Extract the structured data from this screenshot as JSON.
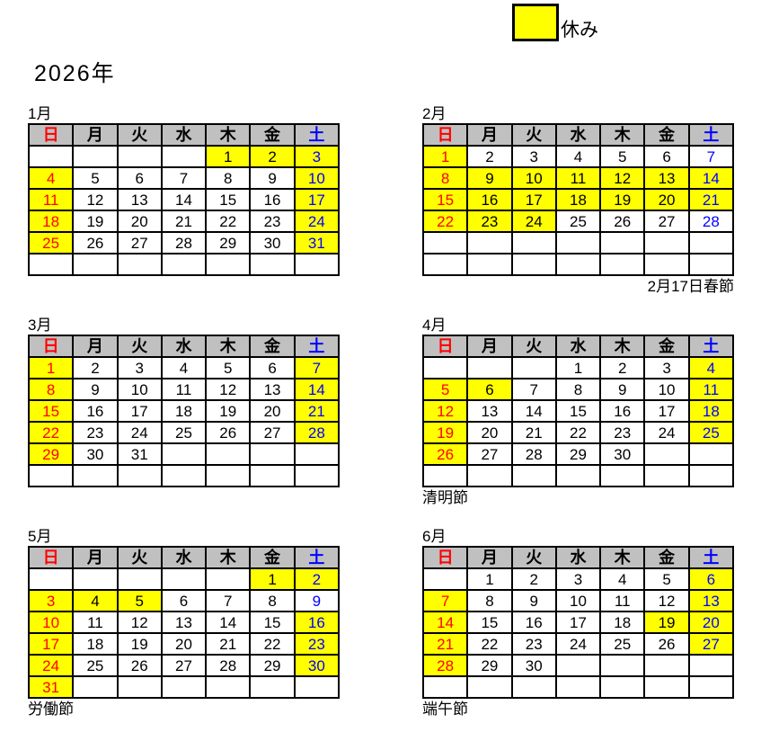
{
  "title": "2026年",
  "legend": {
    "label": "休み"
  },
  "colors": {
    "holiday_bg": "#ffff00",
    "header_bg": "#c0c0c0",
    "sunday_text": "#ff0000",
    "saturday_text": "#0000ff",
    "weekday_text": "#000000",
    "grid": "#000000",
    "page_bg": "#ffffff"
  },
  "weekday_headers": [
    {
      "label": "日",
      "color": "#ff0000"
    },
    {
      "label": "月",
      "color": "#000000"
    },
    {
      "label": "火",
      "color": "#000000"
    },
    {
      "label": "水",
      "color": "#000000"
    },
    {
      "label": "木",
      "color": "#000000"
    },
    {
      "label": "金",
      "color": "#000000"
    },
    {
      "label": "土",
      "color": "#0000ff"
    }
  ],
  "months": [
    {
      "name": "1月",
      "note": null,
      "weeks": [
        [
          null,
          null,
          null,
          null,
          [
            1,
            1
          ],
          [
            2,
            1
          ],
          [
            3,
            1
          ]
        ],
        [
          [
            4,
            1
          ],
          [
            5,
            0
          ],
          [
            6,
            0
          ],
          [
            7,
            0
          ],
          [
            8,
            0
          ],
          [
            9,
            0
          ],
          [
            10,
            1
          ]
        ],
        [
          [
            11,
            1
          ],
          [
            12,
            0
          ],
          [
            13,
            0
          ],
          [
            14,
            0
          ],
          [
            15,
            0
          ],
          [
            16,
            0
          ],
          [
            17,
            1
          ]
        ],
        [
          [
            18,
            1
          ],
          [
            19,
            0
          ],
          [
            20,
            0
          ],
          [
            21,
            0
          ],
          [
            22,
            0
          ],
          [
            23,
            0
          ],
          [
            24,
            1
          ]
        ],
        [
          [
            25,
            1
          ],
          [
            26,
            0
          ],
          [
            27,
            0
          ],
          [
            28,
            0
          ],
          [
            29,
            0
          ],
          [
            30,
            0
          ],
          [
            31,
            1
          ]
        ],
        [
          null,
          null,
          null,
          null,
          null,
          null,
          null
        ]
      ]
    },
    {
      "name": "2月",
      "note": {
        "text": "2月17日春節",
        "align": "right"
      },
      "weeks": [
        [
          [
            1,
            1
          ],
          [
            2,
            0
          ],
          [
            3,
            0
          ],
          [
            4,
            0
          ],
          [
            5,
            0
          ],
          [
            6,
            0
          ],
          [
            7,
            0
          ]
        ],
        [
          [
            8,
            1
          ],
          [
            9,
            1
          ],
          [
            10,
            1
          ],
          [
            11,
            1
          ],
          [
            12,
            1
          ],
          [
            13,
            1
          ],
          [
            14,
            1
          ]
        ],
        [
          [
            15,
            1
          ],
          [
            16,
            1
          ],
          [
            17,
            1
          ],
          [
            18,
            1
          ],
          [
            19,
            1
          ],
          [
            20,
            1
          ],
          [
            21,
            1
          ]
        ],
        [
          [
            22,
            1
          ],
          [
            23,
            1
          ],
          [
            24,
            1
          ],
          [
            25,
            0
          ],
          [
            26,
            0
          ],
          [
            27,
            0
          ],
          [
            28,
            0
          ]
        ],
        [
          null,
          null,
          null,
          null,
          null,
          null,
          null
        ],
        [
          null,
          null,
          null,
          null,
          null,
          null,
          null
        ]
      ]
    },
    {
      "name": "3月",
      "note": null,
      "weeks": [
        [
          [
            1,
            1
          ],
          [
            2,
            0
          ],
          [
            3,
            0
          ],
          [
            4,
            0
          ],
          [
            5,
            0
          ],
          [
            6,
            0
          ],
          [
            7,
            1
          ]
        ],
        [
          [
            8,
            1
          ],
          [
            9,
            0
          ],
          [
            10,
            0
          ],
          [
            11,
            0
          ],
          [
            12,
            0
          ],
          [
            13,
            0
          ],
          [
            14,
            1
          ]
        ],
        [
          [
            15,
            1
          ],
          [
            16,
            0
          ],
          [
            17,
            0
          ],
          [
            18,
            0
          ],
          [
            19,
            0
          ],
          [
            20,
            0
          ],
          [
            21,
            1
          ]
        ],
        [
          [
            22,
            1
          ],
          [
            23,
            0
          ],
          [
            24,
            0
          ],
          [
            25,
            0
          ],
          [
            26,
            0
          ],
          [
            27,
            0
          ],
          [
            28,
            1
          ]
        ],
        [
          [
            29,
            1
          ],
          [
            30,
            0
          ],
          [
            31,
            0
          ],
          null,
          null,
          null,
          null
        ],
        [
          null,
          null,
          null,
          null,
          null,
          null,
          null
        ]
      ]
    },
    {
      "name": "4月",
      "note": {
        "text": "清明節",
        "align": "left"
      },
      "weeks": [
        [
          null,
          null,
          null,
          [
            1,
            0
          ],
          [
            2,
            0
          ],
          [
            3,
            0
          ],
          [
            4,
            1
          ]
        ],
        [
          [
            5,
            1
          ],
          [
            6,
            1
          ],
          [
            7,
            0
          ],
          [
            8,
            0
          ],
          [
            9,
            0
          ],
          [
            10,
            0
          ],
          [
            11,
            1
          ]
        ],
        [
          [
            12,
            1
          ],
          [
            13,
            0
          ],
          [
            14,
            0
          ],
          [
            15,
            0
          ],
          [
            16,
            0
          ],
          [
            17,
            0
          ],
          [
            18,
            1
          ]
        ],
        [
          [
            19,
            1
          ],
          [
            20,
            0
          ],
          [
            21,
            0
          ],
          [
            22,
            0
          ],
          [
            23,
            0
          ],
          [
            24,
            0
          ],
          [
            25,
            1
          ]
        ],
        [
          [
            26,
            1
          ],
          [
            27,
            0
          ],
          [
            28,
            0
          ],
          [
            29,
            0
          ],
          [
            30,
            0
          ],
          null,
          null
        ],
        [
          null,
          null,
          null,
          null,
          null,
          null,
          null
        ]
      ]
    },
    {
      "name": "5月",
      "note": {
        "text": "労働節",
        "align": "left"
      },
      "weeks": [
        [
          null,
          null,
          null,
          null,
          null,
          [
            1,
            1
          ],
          [
            2,
            1
          ]
        ],
        [
          [
            3,
            1
          ],
          [
            4,
            1
          ],
          [
            5,
            1
          ],
          [
            6,
            0
          ],
          [
            7,
            0
          ],
          [
            8,
            0
          ],
          [
            9,
            0
          ]
        ],
        [
          [
            10,
            1
          ],
          [
            11,
            0
          ],
          [
            12,
            0
          ],
          [
            13,
            0
          ],
          [
            14,
            0
          ],
          [
            15,
            0
          ],
          [
            16,
            1
          ]
        ],
        [
          [
            17,
            1
          ],
          [
            18,
            0
          ],
          [
            19,
            0
          ],
          [
            20,
            0
          ],
          [
            21,
            0
          ],
          [
            22,
            0
          ],
          [
            23,
            1
          ]
        ],
        [
          [
            24,
            1
          ],
          [
            25,
            0
          ],
          [
            26,
            0
          ],
          [
            27,
            0
          ],
          [
            28,
            0
          ],
          [
            29,
            0
          ],
          [
            30,
            1
          ]
        ],
        [
          [
            31,
            1
          ],
          null,
          null,
          null,
          null,
          null,
          null
        ]
      ]
    },
    {
      "name": "6月",
      "note": {
        "text": "端午節",
        "align": "left"
      },
      "weeks": [
        [
          null,
          [
            1,
            0
          ],
          [
            2,
            0
          ],
          [
            3,
            0
          ],
          [
            4,
            0
          ],
          [
            5,
            0
          ],
          [
            6,
            1
          ]
        ],
        [
          [
            7,
            1
          ],
          [
            8,
            0
          ],
          [
            9,
            0
          ],
          [
            10,
            0
          ],
          [
            11,
            0
          ],
          [
            12,
            0
          ],
          [
            13,
            1
          ]
        ],
        [
          [
            14,
            1
          ],
          [
            15,
            0
          ],
          [
            16,
            0
          ],
          [
            17,
            0
          ],
          [
            18,
            0
          ],
          [
            19,
            1
          ],
          [
            20,
            1
          ]
        ],
        [
          [
            21,
            1
          ],
          [
            22,
            0
          ],
          [
            23,
            0
          ],
          [
            24,
            0
          ],
          [
            25,
            0
          ],
          [
            26,
            0
          ],
          [
            27,
            1
          ]
        ],
        [
          [
            28,
            1
          ],
          [
            29,
            0
          ],
          [
            30,
            0
          ],
          null,
          null,
          null,
          null
        ],
        [
          null,
          null,
          null,
          null,
          null,
          null,
          null
        ]
      ]
    }
  ]
}
